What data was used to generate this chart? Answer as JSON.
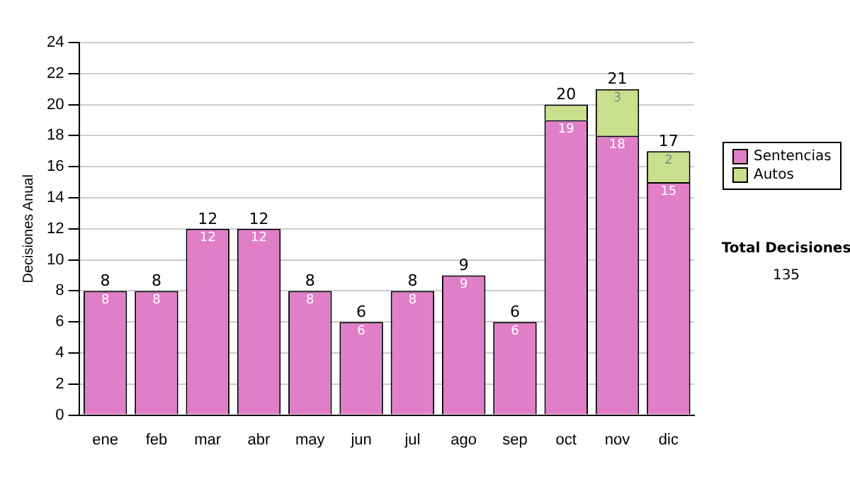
{
  "chart_data": {
    "type": "bar",
    "stacked": true,
    "ylabel": "Decisiones Anual",
    "categories": [
      "ene",
      "feb",
      "mar",
      "abr",
      "may",
      "jun",
      "jul",
      "ago",
      "sep",
      "oct",
      "nov",
      "dic"
    ],
    "series": [
      {
        "name": "Sentencias",
        "color": "#e07fc8",
        "values": [
          8,
          8,
          12,
          12,
          8,
          6,
          8,
          9,
          6,
          19,
          18,
          15
        ],
        "value_labels": [
          "8",
          "8",
          "12",
          "12",
          "8",
          "6",
          "8",
          "9",
          "6",
          "19",
          "18",
          "15"
        ]
      },
      {
        "name": "Autos",
        "color": "#c8e08c",
        "values": [
          null,
          null,
          null,
          null,
          null,
          null,
          null,
          null,
          null,
          1,
          3,
          2
        ],
        "value_labels": [
          null,
          null,
          null,
          null,
          null,
          null,
          null,
          null,
          null,
          null,
          "3",
          "2"
        ]
      }
    ],
    "totals": [
      "8",
      "8",
      "12",
      "12",
      "8",
      "6",
      "8",
      "9",
      "6",
      "20",
      "21",
      "17"
    ],
    "ylim": [
      0,
      24
    ],
    "yticks": [
      0,
      2,
      4,
      6,
      8,
      10,
      12,
      14,
      16,
      18,
      20,
      22,
      24
    ],
    "grid": "y",
    "legend": "right",
    "annotations": [
      "Total Decisiones",
      "135"
    ]
  }
}
